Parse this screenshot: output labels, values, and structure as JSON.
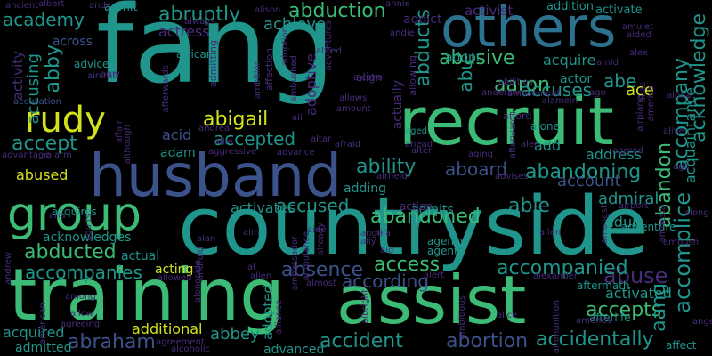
{
  "colors": {
    "background": "#000000",
    "green": "#3bbb75",
    "lime": "#d3e21b",
    "teal": "#1f958b",
    "blue": "#2c718e",
    "slate": "#3b528b",
    "indigo": "#472c7a",
    "purple": "#440154"
  },
  "words": [
    "fang",
    "countryside",
    "recruit",
    "husband",
    "training",
    "assist",
    "others",
    "group",
    "rudy",
    "abuse",
    "abusive",
    "abduction",
    "abruptly",
    "aaron",
    "access",
    "accuses",
    "accepted",
    "accept",
    "ability",
    "aboard",
    "abandoned",
    "abandoning",
    "abigail",
    "abducted",
    "accompanied",
    "accompanies",
    "absence",
    "according",
    "accused",
    "accident",
    "abortion",
    "accidentally",
    "abraham",
    "acquired",
    "accepts",
    "activated",
    "accomplice",
    "accompany",
    "abandon",
    "acknowledge",
    "aang",
    "abe",
    "ace",
    "abu",
    "abducts",
    "able",
    "academy",
    "abby",
    "accusing",
    "across",
    "account",
    "achieve",
    "adoptive",
    "actually",
    "actress",
    "activist",
    "activity",
    "acquaintance",
    "acquire",
    "address",
    "admiral",
    "adult",
    "add",
    "adopt",
    "acid",
    "adam",
    "activates",
    "acknowledges",
    "admits",
    "adding",
    "action",
    "agency",
    "agent",
    "actual",
    "acting",
    "adopted",
    "aged",
    "additional",
    "advanced",
    "admitted",
    "acquires",
    "abused",
    "accusation",
    "actor",
    "admit",
    "addict",
    "activate",
    "addition",
    "adventure",
    "advice",
    "african",
    "affection",
    "admitting",
    "afterwards",
    "adoption",
    "ambushed",
    "allows",
    "amount",
    "alfred",
    "align",
    "allowing",
    "abilities",
    "aftermath",
    "afterlife",
    "abbey",
    "alive",
    "alone",
    "alpha",
    "amulet",
    "amid",
    "alex",
    "ago",
    "afford",
    "alamein",
    "agreed",
    "ahead",
    "alert",
    "airport",
    "airfield",
    "advises",
    "age",
    "along",
    "ambush",
    "amongst",
    "allen",
    "allie",
    "albert",
    "ancient",
    "andy",
    "always",
    "alison",
    "andrea",
    "ali",
    "alan",
    "android",
    "aim",
    "aide",
    "already",
    "angela",
    "ally",
    "aid",
    "air",
    "alien",
    "al",
    "allowed",
    "alongside",
    "ambassador",
    "ambulance",
    "albright",
    "alter",
    "altar",
    "afraid",
    "aging",
    "alec",
    "aggressive",
    "advance",
    "affair",
    "although",
    "alarm",
    "advantage",
    "aircraft",
    "amy",
    "alcoholic",
    "agreement",
    "amends",
    "ammunition",
    "alice",
    "ambitious",
    "alexander",
    "almost",
    "alliance",
    "allow",
    "among",
    "american",
    "andrew",
    "anderson",
    "amusement",
    "annie",
    "andie",
    "aided",
    "alcohol",
    "ana",
    "adults",
    "afterward",
    "airplane",
    "alias",
    "america",
    "amnesia",
    "affect",
    "angel",
    "agreeing",
    "ambition",
    "adventures"
  ]
}
